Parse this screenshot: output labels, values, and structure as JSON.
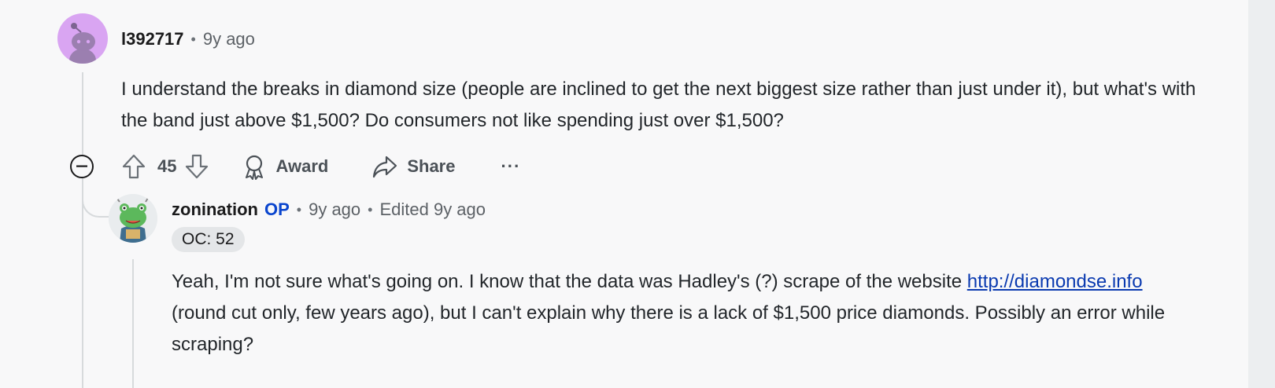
{
  "parent_comment": {
    "username": "l392717",
    "age": "9y ago",
    "body": "I understand the breaks in diamond size (people are inclined to get the next biggest size rather than just under it), but what's with the band just above $1,500? Do consumers not like spending just over $1,500?",
    "score": "45",
    "award_label": "Award",
    "share_label": "Share",
    "more_label": "···"
  },
  "reply": {
    "username": "zonination",
    "op_badge": "OP",
    "age": "9y ago",
    "edited": "Edited 9y ago",
    "flair": "OC: 52",
    "body_part1": "Yeah, I'm not sure what's going on. I know that the data was Hadley's (?) scrape of the website",
    "link": "http://diamondse.info",
    "body_part2": "(round cut only, few years ago), but I can't explain why there is a lack of $1,500 price diamonds. Possibly an error while scraping?"
  },
  "colors": {
    "background": "#f8f8f9",
    "avatar_parent": "#d9a5f2",
    "op_badge": "#0a45ce",
    "link": "#0a3ab0"
  }
}
